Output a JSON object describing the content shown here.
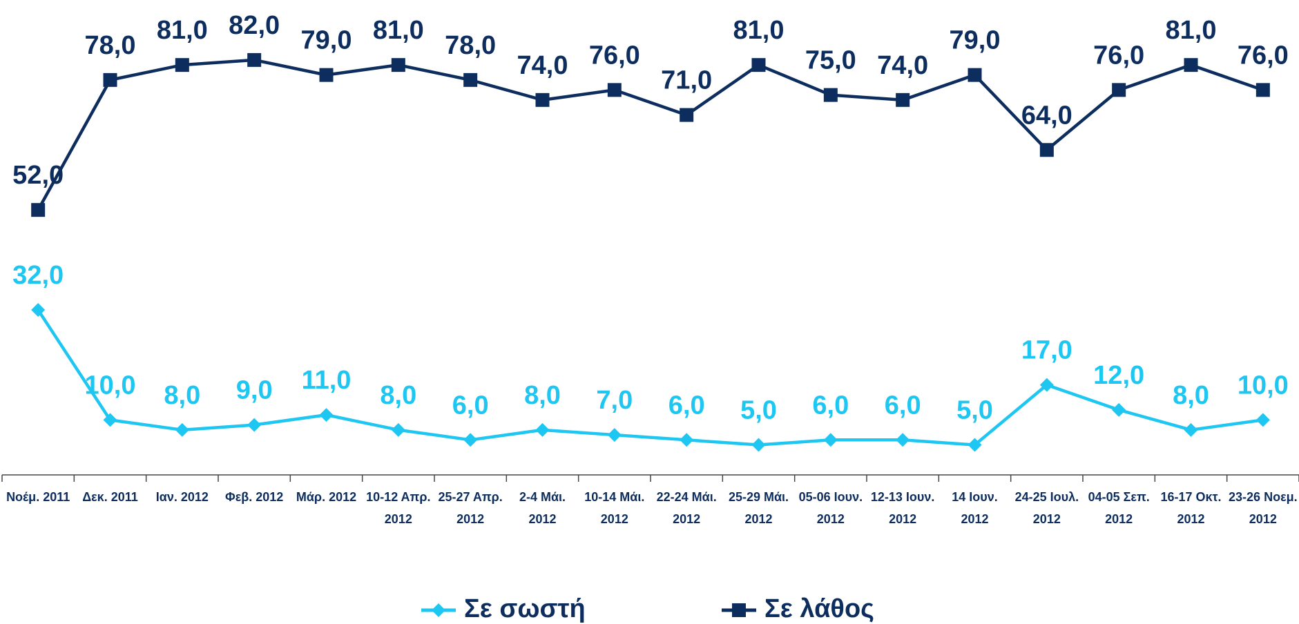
{
  "chart_data": {
    "type": "line",
    "categories": [
      "Νοέμ. 2011",
      "Δεκ. 2011",
      "Ιαν. 2012",
      "Φεβ. 2012",
      "Μάρ. 2012",
      "10-12 Απρ. 2012",
      "25-27 Απρ. 2012",
      "2-4 Μάι. 2012",
      "10-14 Μάι. 2012",
      "22-24 Μάι. 2012",
      "25-29 Μάι. 2012",
      "05-06 Ιουν. 2012",
      "12-13 Ιουν. 2012",
      "14 Ιουν. 2012",
      "24-25 Ιουλ. 2012",
      "04-05 Σεπ. 2012",
      "16-17 Οκτ. 2012",
      "23-26 Νοεμ. 2012"
    ],
    "series": [
      {
        "name": "Σε σωστή",
        "color": "#1ec6f2",
        "marker": "diamond",
        "values": [
          32,
          10,
          8,
          9,
          11,
          8,
          6,
          8,
          7,
          6,
          5,
          6,
          6,
          5,
          17,
          12,
          8,
          10
        ],
        "value_labels": [
          "32,0",
          "10,0",
          "8,0",
          "9,0",
          "11,0",
          "8,0",
          "6,0",
          "8,0",
          "7,0",
          "6,0",
          "5,0",
          "6,0",
          "6,0",
          "5,0",
          "17,0",
          "12,0",
          "8,0",
          "10,0"
        ]
      },
      {
        "name": "Σε λάθος",
        "color": "#0d2d5e",
        "marker": "square",
        "values": [
          52,
          78,
          81,
          82,
          79,
          81,
          78,
          74,
          76,
          71,
          81,
          75,
          74,
          79,
          64,
          76,
          81,
          76
        ],
        "value_labels": [
          "52,0",
          "78,0",
          "81,0",
          "82,0",
          "79,0",
          "81,0",
          "78,0",
          "74,0",
          "76,0",
          "71,0",
          "81,0",
          "75,0",
          "74,0",
          "79,0",
          "64,0",
          "76,0",
          "81,0",
          "76,0"
        ]
      }
    ],
    "ylim": [
      -1,
      94
    ],
    "legend": "bottom"
  }
}
